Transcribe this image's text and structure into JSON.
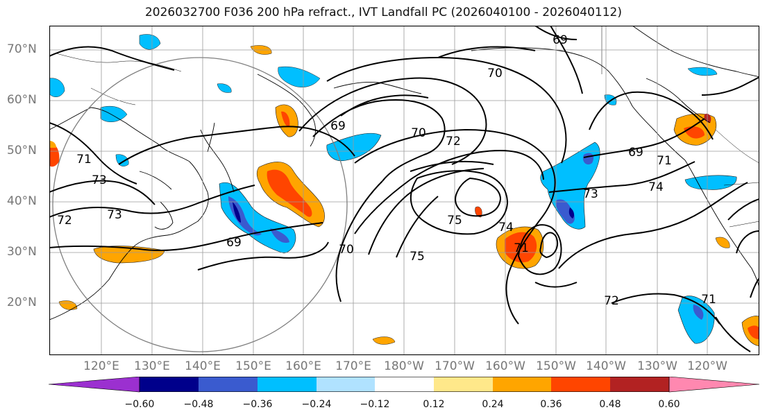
{
  "title": "2026032700 F036 200 hPa refract., IVT Landfall PC (2026040100 - 2026040112)",
  "lat_labels": [
    "70°N",
    "60°N",
    "50°N",
    "40°N",
    "30°N",
    "20°N"
  ],
  "lon_labels": [
    "120°E",
    "130°E",
    "140°E",
    "150°E",
    "160°E",
    "170°E",
    "180°W",
    "170°W",
    "160°W",
    "150°W",
    "140°W",
    "130°W",
    "120°W"
  ],
  "contour_labels": [
    "69",
    "70",
    "71",
    "72",
    "73",
    "74",
    "75",
    "69",
    "70",
    "71",
    "72",
    "73",
    "74",
    "69",
    "70",
    "71",
    "72",
    "73",
    "75",
    "69",
    "71"
  ],
  "colorbar": {
    "ticks": [
      "−0.60",
      "−0.48",
      "−0.36",
      "−0.24",
      "−0.12",
      "0.12",
      "0.24",
      "0.36",
      "0.48",
      "0.60"
    ],
    "colors": [
      "#9b30d0",
      "#00008b",
      "#3a5bcf",
      "#00bfff",
      "#b0e2ff",
      "#ffffff",
      "#ffe88a",
      "#ffa500",
      "#ff4500",
      "#b22222",
      "#ff88b0"
    ]
  }
}
